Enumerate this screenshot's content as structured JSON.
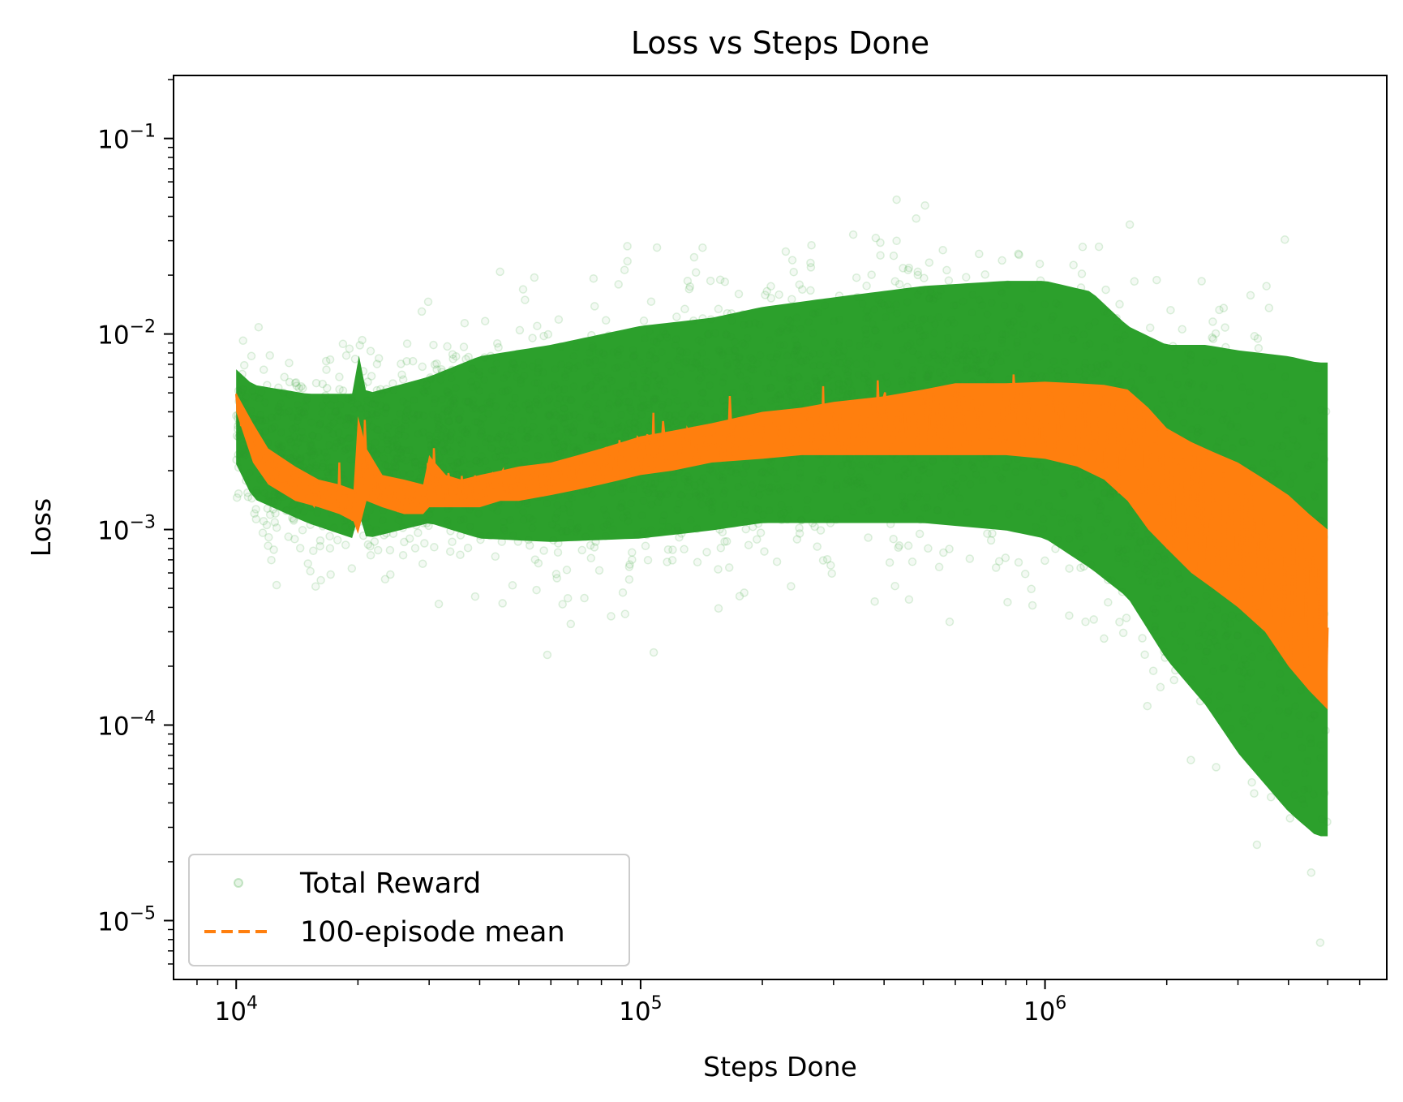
{
  "chart_data": {
    "type": "scatter",
    "title": "Loss vs Steps Done",
    "xlabel": "Steps Done",
    "ylabel": "Loss",
    "xscale": "log",
    "yscale": "log",
    "xlim": [
      7000,
      7000000
    ],
    "ylim": [
      5e-06,
      0.21
    ],
    "xticks": [
      {
        "value": 10000,
        "base": "10",
        "exp": "4"
      },
      {
        "value": 100000,
        "base": "10",
        "exp": "5"
      },
      {
        "value": 1000000,
        "base": "10",
        "exp": "6"
      }
    ],
    "yticks": [
      {
        "value": 1e-05,
        "base": "10",
        "exp": "−5"
      },
      {
        "value": 0.0001,
        "base": "10",
        "exp": "−4"
      },
      {
        "value": 0.001,
        "base": "10",
        "exp": "−3"
      },
      {
        "value": 0.01,
        "base": "10",
        "exp": "−2"
      },
      {
        "value": 0.1,
        "base": "10",
        "exp": "−1"
      }
    ],
    "grid": false,
    "legend_position": "lower-left",
    "colors": {
      "scatter": "#2ca02c",
      "mean": "#ff7f0e"
    },
    "series": [
      {
        "name": "Total Reward",
        "kind": "scatter",
        "x_range": [
          10000,
          5000000
        ],
        "envelope": {
          "x": [
            10000,
            11000,
            15000,
            19500,
            20000,
            21000,
            30000,
            40000,
            60000,
            100000,
            150000,
            200000,
            300000,
            500000,
            800000,
            1000000,
            1300000,
            1600000,
            2000000,
            2500000,
            3000000,
            4000000,
            4700000,
            5000000
          ],
          "upper": [
            0.012,
            0.01,
            0.009,
            0.009,
            0.015,
            0.009,
            0.011,
            0.014,
            0.016,
            0.02,
            0.022,
            0.025,
            0.028,
            0.032,
            0.034,
            0.034,
            0.03,
            0.02,
            0.016,
            0.016,
            0.015,
            0.014,
            0.013,
            0.013
          ],
          "lower": [
            0.0012,
            0.0008,
            0.0006,
            0.0005,
            0.0007,
            0.0005,
            0.0006,
            0.0005,
            0.00048,
            0.0005,
            0.00055,
            0.0006,
            0.0006,
            0.0006,
            0.00055,
            0.0005,
            0.00035,
            0.00025,
            0.00012,
            7e-05,
            4e-05,
            2e-05,
            1.5e-05,
            1.5e-05
          ]
        }
      },
      {
        "name": "100-episode mean",
        "kind": "line",
        "x": [
          10000,
          11000,
          12000,
          14000,
          16000,
          18000,
          19500,
          20000,
          21000,
          23000,
          26000,
          29000,
          30000,
          31000,
          33000,
          36000,
          40000,
          45000,
          50000,
          60000,
          70000,
          80000,
          90000,
          100000,
          120000,
          150000,
          200000,
          250000,
          300000,
          400000,
          500000,
          600000,
          700000,
          800000,
          1000000,
          1200000,
          1400000,
          1600000,
          1800000,
          2000000,
          2300000,
          2600000,
          3000000,
          3500000,
          4000000,
          4500000,
          5000000
        ],
        "upper": [
          0.005,
          0.0035,
          0.0026,
          0.0021,
          0.0018,
          0.0017,
          0.0016,
          0.0038,
          0.0026,
          0.0019,
          0.0018,
          0.0017,
          0.0024,
          0.0022,
          0.0019,
          0.0018,
          0.0019,
          0.002,
          0.0021,
          0.0022,
          0.0024,
          0.0026,
          0.0028,
          0.003,
          0.0032,
          0.0035,
          0.004,
          0.0042,
          0.0045,
          0.0048,
          0.0052,
          0.0056,
          0.0056,
          0.0056,
          0.0057,
          0.0056,
          0.0055,
          0.0052,
          0.0042,
          0.0033,
          0.0028,
          0.0025,
          0.0022,
          0.0018,
          0.0015,
          0.0012,
          0.001
        ],
        "lower": [
          0.004,
          0.0022,
          0.0017,
          0.0014,
          0.0013,
          0.0012,
          0.0011,
          0.00095,
          0.0014,
          0.0013,
          0.0012,
          0.0012,
          0.0013,
          0.0013,
          0.0013,
          0.0013,
          0.0013,
          0.0014,
          0.0014,
          0.0015,
          0.0016,
          0.0017,
          0.0018,
          0.0019,
          0.002,
          0.0022,
          0.0023,
          0.0024,
          0.0024,
          0.0024,
          0.0024,
          0.0024,
          0.0024,
          0.0024,
          0.0023,
          0.0021,
          0.0018,
          0.0014,
          0.001,
          0.0008,
          0.0006,
          0.0005,
          0.0004,
          0.0003,
          0.0002,
          0.00015,
          0.00012
        ]
      }
    ]
  }
}
